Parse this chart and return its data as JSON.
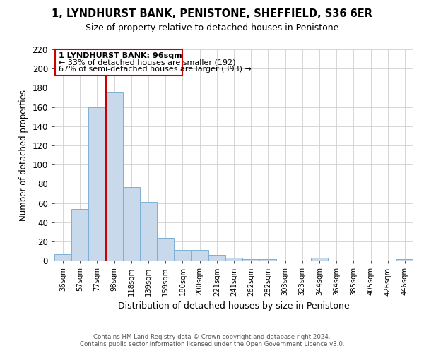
{
  "title": "1, LYNDHURST BANK, PENISTONE, SHEFFIELD, S36 6ER",
  "subtitle": "Size of property relative to detached houses in Penistone",
  "xlabel": "Distribution of detached houses by size in Penistone",
  "ylabel": "Number of detached properties",
  "bar_labels": [
    "36sqm",
    "57sqm",
    "77sqm",
    "98sqm",
    "118sqm",
    "139sqm",
    "159sqm",
    "180sqm",
    "200sqm",
    "221sqm",
    "241sqm",
    "262sqm",
    "282sqm",
    "303sqm",
    "323sqm",
    "344sqm",
    "364sqm",
    "385sqm",
    "405sqm",
    "426sqm",
    "446sqm"
  ],
  "bar_values": [
    7,
    54,
    160,
    175,
    77,
    61,
    24,
    11,
    11,
    6,
    3,
    2,
    2,
    0,
    0,
    3,
    0,
    0,
    0,
    0,
    2
  ],
  "bar_color": "#c9d9ec",
  "bar_edge_color": "#7eafd4",
  "ylim": [
    0,
    220
  ],
  "yticks": [
    0,
    20,
    40,
    60,
    80,
    100,
    120,
    140,
    160,
    180,
    200,
    220
  ],
  "vline_color": "#cc0000",
  "annotation_title": "1 LYNDHURST BANK: 96sqm",
  "annotation_line1": "← 33% of detached houses are smaller (192)",
  "annotation_line2": "67% of semi-detached houses are larger (393) →",
  "footer_line1": "Contains HM Land Registry data © Crown copyright and database right 2024.",
  "footer_line2": "Contains public sector information licensed under the Open Government Licence v3.0.",
  "background_color": "#ffffff",
  "grid_color": "#d0d0d0"
}
